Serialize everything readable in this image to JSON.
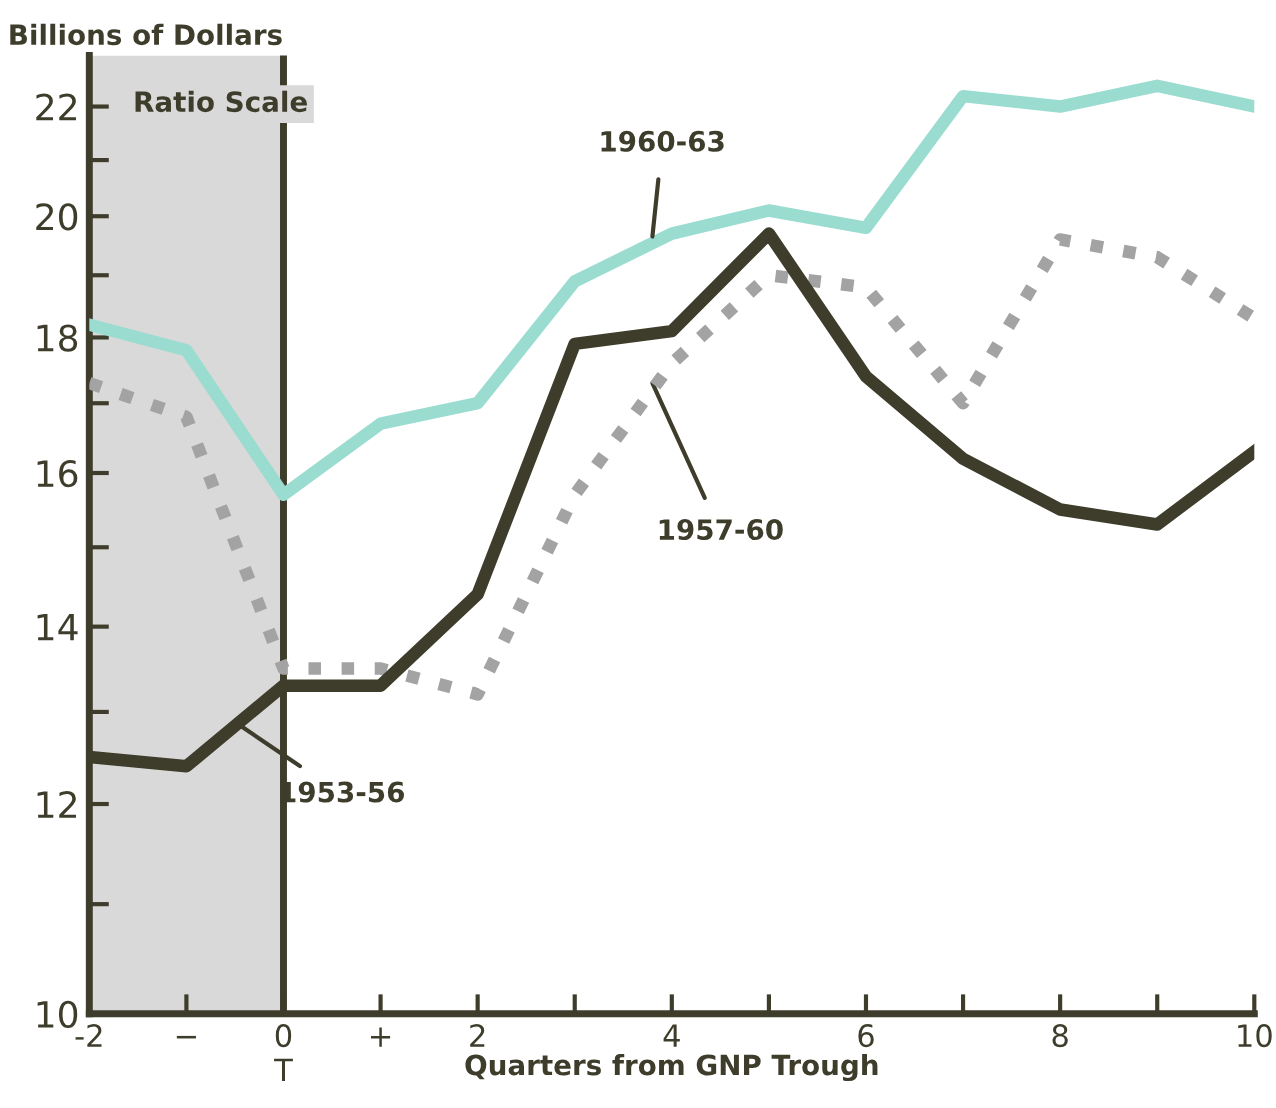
{
  "chart_data": {
    "type": "line",
    "ylabel": "Billions of Dollars",
    "xlabel": "Quarters from GNP Trough",
    "annotations": [
      "Ratio Scale"
    ],
    "x": [
      -2,
      -1,
      0,
      1,
      2,
      3,
      4,
      5,
      6,
      7,
      8,
      9,
      10
    ],
    "series": [
      {
        "name": "1960-63",
        "color": "#9adcd0",
        "values": [
          18.2,
          17.8,
          15.7,
          16.7,
          17.0,
          18.9,
          19.7,
          20.1,
          19.8,
          22.2,
          22.0,
          22.4,
          22.0
        ]
      },
      {
        "name": "1957-60",
        "color": "#a3a3a3",
        "line_style": "dotted",
        "values": [
          17.3,
          16.8,
          13.5,
          13.5,
          13.2,
          15.7,
          17.6,
          19.0,
          18.8,
          17.0,
          19.6,
          19.3,
          18.3
        ]
      },
      {
        "name": "1953-56",
        "color": "#3e3c2a",
        "values": [
          12.5,
          12.4,
          13.3,
          13.3,
          14.4,
          17.9,
          18.1,
          19.7,
          17.4,
          16.2,
          15.5,
          15.3,
          16.3
        ]
      }
    ],
    "log": "y",
    "xlim": [
      -2,
      10
    ],
    "xticks": [
      -2,
      {
        "value": -1,
        "label": "−"
      },
      {
        "value": 0,
        "label": "0\nT"
      },
      {
        "value": 1,
        "label": "+"
      },
      2,
      {
        "value": 3,
        "label": null
      },
      4,
      {
        "value": 5,
        "label": null
      },
      6,
      {
        "value": 7,
        "label": null
      },
      8,
      {
        "value": 9,
        "label": null
      },
      10
    ],
    "ylim": [
      10,
      23
    ],
    "yticks": [
      10,
      {
        "value": 11,
        "label": null
      },
      12,
      {
        "value": 13,
        "label": null
      },
      14,
      {
        "value": 15,
        "label": null
      },
      16,
      {
        "value": 17,
        "label": null
      },
      18,
      {
        "value": 19,
        "label": null
      },
      20,
      {
        "value": 21,
        "label": null
      },
      22
    ],
    "bands": [
      {
        "axis": "x",
        "from": -2,
        "to": 0,
        "color": "#d9d9d9"
      }
    ],
    "ref_lines": [
      {
        "axis": "x",
        "value": 0,
        "color": "#3e3c2a"
      }
    ],
    "grid": false
  }
}
